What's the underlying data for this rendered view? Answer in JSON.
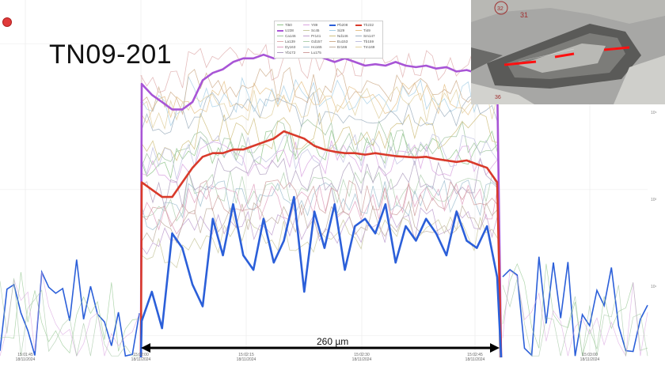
{
  "title": "TN09-201",
  "scale_bar_label": "260 µm",
  "colors": {
    "Pb208": "#2b5fd9",
    "Th232": "#d93a2b",
    "U238": "#a855d6",
    "accent_arrow": "#000000",
    "record_dot": "#e03a3a"
  },
  "chart_data": {
    "type": "line",
    "yscale": "log",
    "grid": true,
    "legend_position": "top-center",
    "x_ticks": [
      {
        "time": "15:01:45",
        "date": "18/11/2024"
      },
      {
        "time": "15:02:00",
        "date": "18/11/2024"
      },
      {
        "time": "15:02:15",
        "date": "18/11/2024"
      },
      {
        "time": "15:02:30",
        "date": "18/11/2024"
      },
      {
        "time": "15:02:45",
        "date": "18/11/2024"
      },
      {
        "time": "15:03:00",
        "date": "18/11/2024"
      }
    ],
    "y_tick_labels": [
      "10⁵",
      "10³",
      "10¹"
    ],
    "legend": [
      [
        "Ti50",
        "#8fc48a"
      ],
      [
        "Y89",
        "#d9a3e0"
      ],
      [
        "Pb208",
        "#2b5fd9"
      ],
      [
        "Th232",
        "#d93a2b"
      ],
      [
        "U238",
        "#a855d6"
      ],
      [
        "Sc45",
        "#c9c9a0"
      ],
      [
        "Si29",
        "#a8d0e6"
      ],
      [
        "Ti49",
        "#e6c28a"
      ],
      [
        "Ca146",
        "#a0c4a0"
      ],
      [
        "Pr141",
        "#c0a0d0"
      ],
      [
        "Nd146",
        "#d0c080"
      ],
      [
        "Sm147",
        "#9fb0c0"
      ],
      [
        "La139",
        "#e0b0b0"
      ],
      [
        "Gd157",
        "#b0d0b0"
      ],
      [
        "Eu153",
        "#d0b090"
      ],
      [
        "Tb159",
        "#c0c0e0"
      ],
      [
        "Dy163",
        "#e0a0c0"
      ],
      [
        "Ho165",
        "#a0c0d0"
      ],
      [
        "Er166",
        "#c0b0a0"
      ],
      [
        "Tm169",
        "#e0d0a0"
      ],
      [
        "Yb172",
        "#b0a0c0"
      ],
      [
        "Lu175",
        "#d0a0a0"
      ]
    ],
    "ablation_start": "15:02:00",
    "ablation_end": "15:02:48",
    "series": [
      {
        "name": "U238",
        "log_values": [
          4.45,
          4.3,
          4.2,
          4.1,
          4.1,
          4.2,
          4.5,
          4.6,
          4.65,
          4.75,
          4.8,
          4.8,
          4.85,
          4.8,
          4.85,
          4.95,
          4.9,
          4.85,
          4.8,
          4.75,
          4.8,
          4.75,
          4.7,
          4.72,
          4.7,
          4.75,
          4.7,
          4.68,
          4.7,
          4.66,
          4.68,
          4.62,
          4.64,
          4.6,
          4.58,
          4.5
        ]
      },
      {
        "name": "Th232",
        "log_values": [
          3.1,
          3.0,
          2.9,
          2.9,
          3.1,
          3.3,
          3.45,
          3.5,
          3.5,
          3.55,
          3.55,
          3.6,
          3.65,
          3.7,
          3.8,
          3.75,
          3.7,
          3.6,
          3.55,
          3.52,
          3.5,
          3.5,
          3.48,
          3.5,
          3.48,
          3.46,
          3.45,
          3.44,
          3.45,
          3.42,
          3.4,
          3.38,
          3.4,
          3.35,
          3.3,
          3.1
        ]
      },
      {
        "name": "Pb208",
        "log_values": [
          1.2,
          1.6,
          1.1,
          2.4,
          2.2,
          1.7,
          1.4,
          2.6,
          2.1,
          2.8,
          2.1,
          1.9,
          2.6,
          2.0,
          2.3,
          2.9,
          1.6,
          2.7,
          2.2,
          2.8,
          1.9,
          2.5,
          2.6,
          2.4,
          2.8,
          2.0,
          2.5,
          2.3,
          2.6,
          2.4,
          2.1,
          2.7,
          2.3,
          2.2,
          2.5,
          1.8
        ]
      }
    ]
  },
  "inset": {
    "labels": [
      "32",
      "31",
      "36"
    ]
  }
}
